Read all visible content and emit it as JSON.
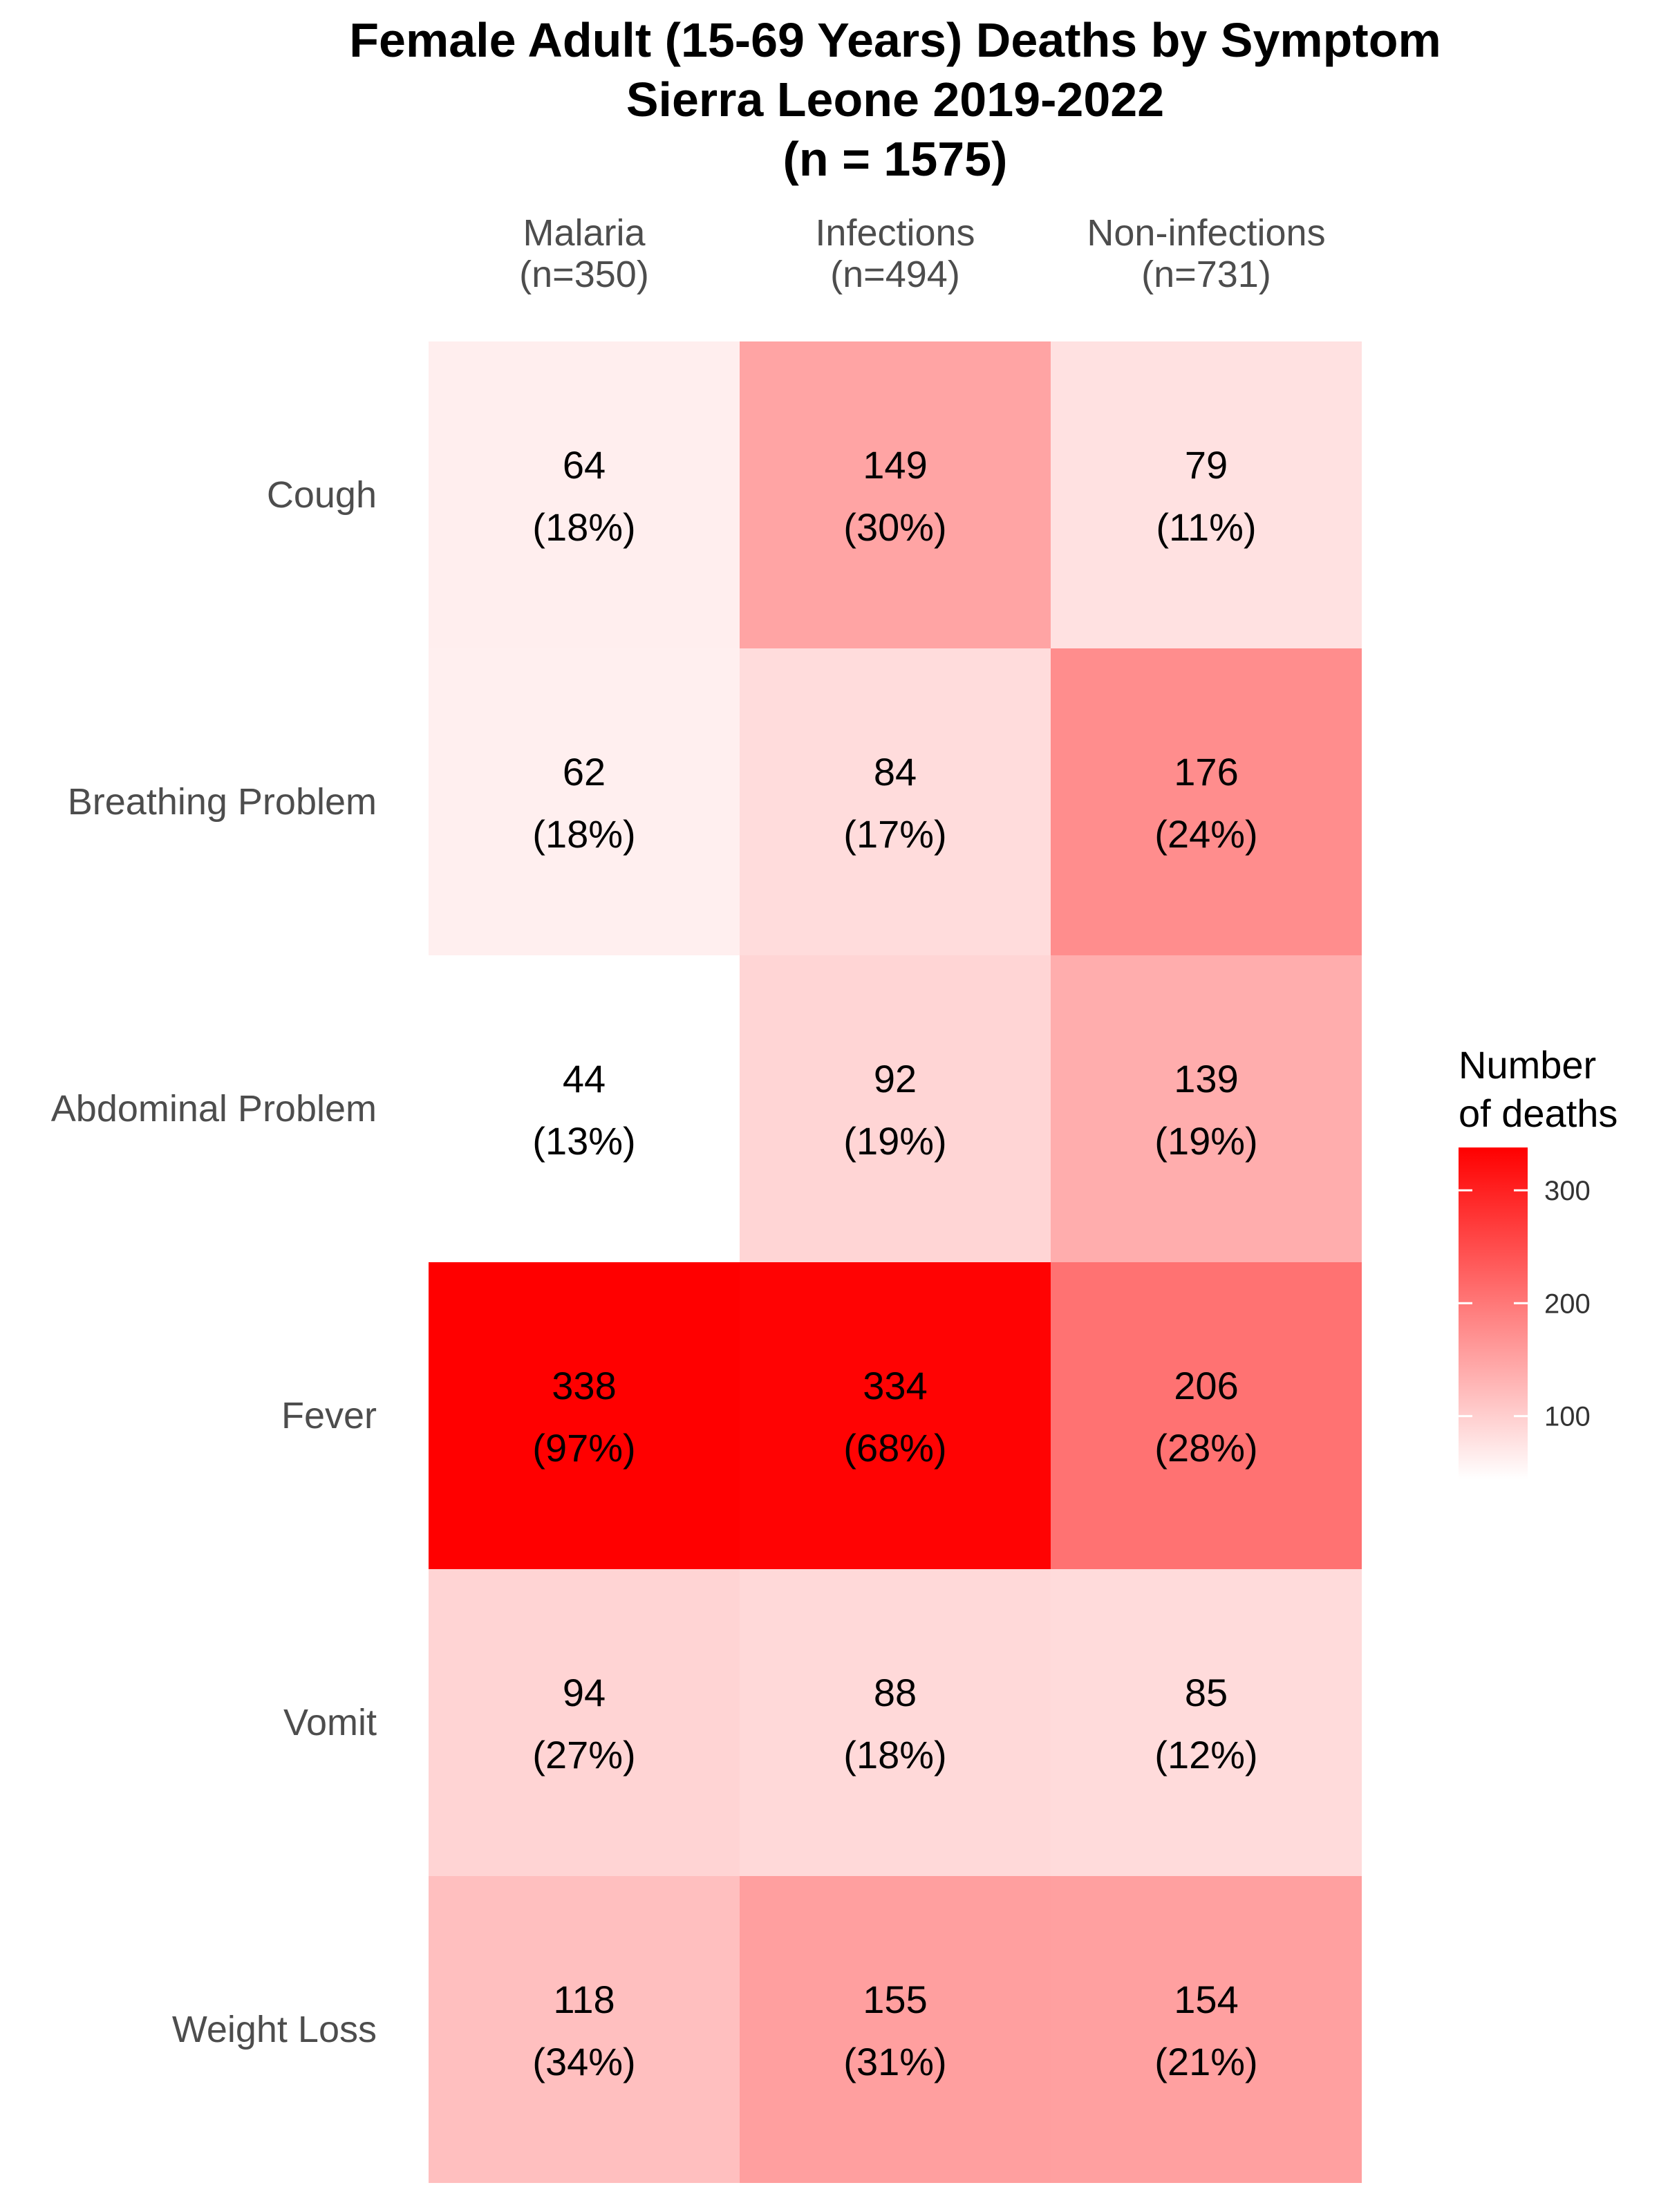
{
  "chart_data": {
    "type": "heatmap",
    "title_lines": [
      "Female Adult (15-69 Years) Deaths by Symptom",
      "Sierra Leone 2019-2022",
      "(n = 1575)"
    ],
    "columns": [
      {
        "name": "Malaria",
        "n_label": "(n=350)"
      },
      {
        "name": "Infections",
        "n_label": "(n=494)"
      },
      {
        "name": "Non-infections",
        "n_label": "(n=731)"
      }
    ],
    "rows": [
      "Cough",
      "Breathing Problem",
      "Abdominal Problem",
      "Fever",
      "Vomit",
      "Weight Loss"
    ],
    "values": [
      [
        64,
        149,
        79
      ],
      [
        62,
        84,
        176
      ],
      [
        44,
        92,
        139
      ],
      [
        338,
        334,
        206
      ],
      [
        94,
        88,
        85
      ],
      [
        118,
        155,
        154
      ]
    ],
    "percent_labels": [
      [
        "(18%)",
        "(30%)",
        "(11%)"
      ],
      [
        "(18%)",
        "(17%)",
        "(24%)"
      ],
      [
        "(13%)",
        "(19%)",
        "(19%)"
      ],
      [
        "(97%)",
        "(68%)",
        "(28%)"
      ],
      [
        "(27%)",
        "(18%)",
        "(12%)"
      ],
      [
        "(34%)",
        "(31%)",
        "(21%)"
      ]
    ],
    "legend": {
      "title_lines": [
        "Number",
        "of deaths"
      ],
      "ticks": [
        100,
        200,
        300
      ],
      "range": [
        44,
        338
      ],
      "low_color": "#ffffff",
      "high_color": "#ff0000",
      "placement": "right"
    }
  }
}
